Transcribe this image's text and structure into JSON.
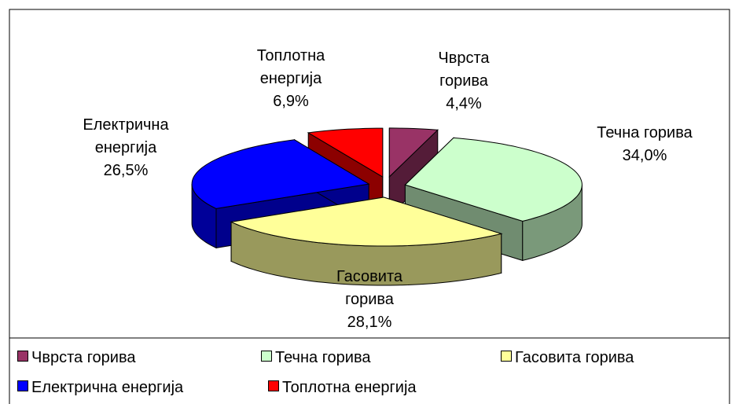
{
  "chart_data": {
    "type": "pie",
    "categories": [
      "Чврста горива",
      "Течна горива",
      "Гасовита горива",
      "Електрична енергија",
      "Топлотна енергија"
    ],
    "values": [
      4.4,
      34.0,
      28.1,
      26.5,
      6.9
    ],
    "value_labels": [
      "4,4%",
      "34,0%",
      "28,1%",
      "26,5%",
      "6,9%"
    ],
    "colors": [
      "#993366",
      "#ccffcc",
      "#ffff99",
      "#0000ff",
      "#ff0000"
    ]
  }
}
